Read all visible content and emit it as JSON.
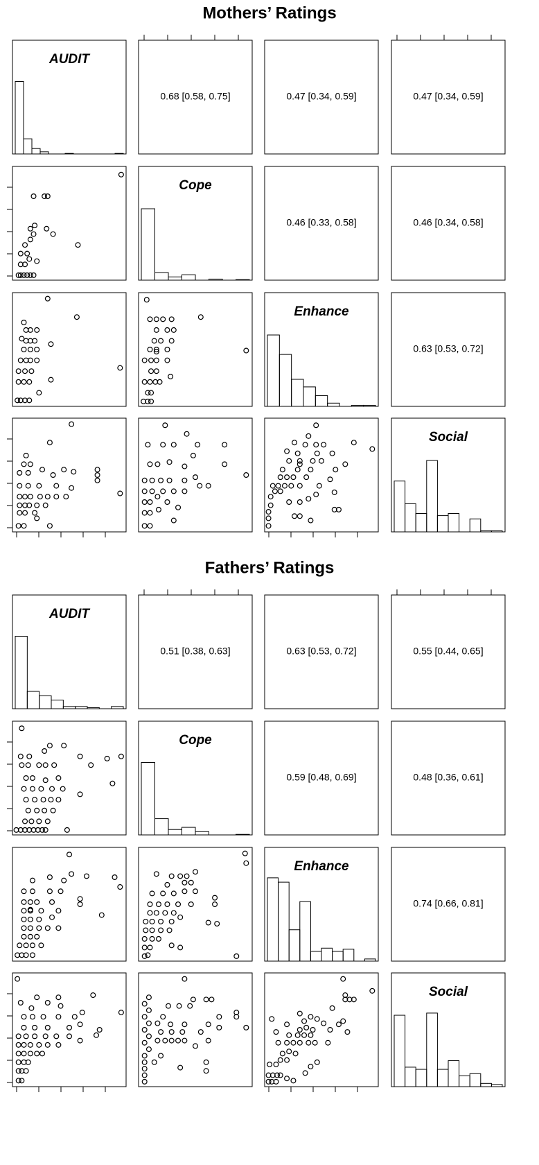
{
  "chart_data": [
    {
      "type": "scatter_matrix",
      "title": "Mothers’ Ratings",
      "xlim": [
        0,
        100
      ],
      "ylim": [
        0,
        100
      ],
      "variables": [
        "AUDIT",
        "Cope",
        "Enhance",
        "Social"
      ],
      "correlations": [
        "0.68 [0.58, 0.75]",
        "0.47 [0.34, 0.59]",
        "0.47 [0.34, 0.59]",
        "0.46 [0.33, 0.58]",
        "0.46 [0.34, 0.58]",
        "0.63 [0.53, 0.72]"
      ],
      "histograms": [
        {
          "counts": [
            67,
            14,
            5,
            2,
            0,
            0,
            0.5,
            0,
            0,
            0,
            0,
            0,
            0.5
          ]
        },
        {
          "counts": [
            66,
            7,
            3,
            5,
            0,
            1,
            0,
            0.5
          ]
        },
        {
          "counts": [
            66,
            48,
            25,
            18,
            10,
            3,
            0,
            1,
            1
          ]
        },
        {
          "counts": [
            47,
            26,
            17,
            66,
            15,
            17,
            0,
            12,
            1,
            1
          ]
        }
      ],
      "scatter": [
        {
          "x": [
            3,
            5,
            8,
            11,
            14,
            17,
            5,
            9,
            5,
            11,
            9,
            14,
            17,
            14,
            18,
            29,
            35,
            17,
            27,
            30,
            58,
            98,
            20,
            13
          ],
          "y": [
            2,
            2,
            2,
            2,
            2,
            2,
            12,
            12,
            22,
            22,
            30,
            35,
            40,
            45,
            48,
            45,
            40,
            75,
            75,
            75,
            30,
            95,
            15,
            17
          ]
        },
        {
          "x": [
            2,
            5,
            9,
            13,
            3,
            8,
            13,
            3,
            9,
            15,
            5,
            10,
            14,
            20,
            8,
            14,
            20,
            10,
            14,
            18,
            33,
            10,
            14,
            20,
            6,
            33,
            8,
            22,
            97,
            57,
            30
          ],
          "y": [
            3,
            3,
            3,
            3,
            20,
            20,
            20,
            30,
            30,
            30,
            40,
            40,
            40,
            40,
            50,
            50,
            50,
            58,
            58,
            58,
            55,
            68,
            68,
            68,
            60,
            22,
            75,
            10,
            33,
            80,
            97
          ]
        },
        {
          "x": [
            2,
            6,
            9,
            6,
            9,
            3,
            8,
            13,
            17,
            9,
            14,
            3,
            9,
            14,
            24,
            8,
            14,
            24,
            12,
            18,
            28,
            14,
            24,
            30,
            8,
            14,
            20,
            28,
            55,
            97,
            5,
            14,
            27
          ],
          "y": [
            2,
            2,
            2,
            10,
            10,
            20,
            20,
            20,
            20,
            30,
            30,
            40,
            40,
            40,
            40,
            50,
            50,
            50,
            58,
            58,
            58,
            68,
            68,
            68,
            78,
            78,
            78,
            78,
            80,
            49,
            96,
            48,
            25
          ]
        },
        {
          "x": [
            3,
            8,
            32,
            4,
            9,
            18,
            4,
            9,
            13,
            20,
            28,
            4,
            9,
            14,
            23,
            30,
            38,
            47,
            4,
            12,
            22,
            38,
            52,
            76,
            76,
            76,
            54,
            4,
            12,
            35,
            45,
            97,
            8,
            14,
            10,
            32,
            52,
            25,
            20
          ],
          "y": [
            3,
            3,
            3,
            15,
            15,
            15,
            22,
            22,
            22,
            22,
            22,
            30,
            30,
            30,
            30,
            30,
            30,
            30,
            40,
            40,
            40,
            40,
            38,
            45,
            50,
            55,
            53,
            52,
            52,
            50,
            55,
            33,
            60,
            60,
            68,
            80,
            97,
            55,
            10
          ]
        },
        {
          "x": [
            3,
            8,
            30,
            3,
            8,
            16,
            3,
            8,
            15,
            24,
            3,
            10,
            20,
            30,
            40,
            54,
            3,
            10,
            18,
            26,
            40,
            50,
            8,
            15,
            26,
            40,
            48,
            6,
            20,
            30,
            52,
            77,
            42,
            22,
            77,
            97,
            62,
            34
          ],
          "y": [
            3,
            3,
            8,
            15,
            15,
            18,
            25,
            25,
            30,
            25,
            35,
            35,
            35,
            35,
            35,
            40,
            45,
            45,
            45,
            45,
            45,
            48,
            60,
            60,
            62,
            58,
            68,
            78,
            78,
            78,
            78,
            78,
            88,
            96,
            60,
            50,
            40,
            20
          ]
        },
        {
          "x": [
            1,
            1,
            1,
            3,
            3,
            7,
            12,
            5,
            10,
            16,
            22,
            30,
            12,
            18,
            24,
            36,
            14,
            28,
            40,
            20,
            30,
            38,
            45,
            48,
            20,
            30,
            42,
            50,
            46,
            28,
            18,
            35,
            45,
            52,
            25,
            38,
            30,
            60,
            63,
            72,
            80,
            97,
            45,
            62,
            62,
            66,
            25,
            30,
            40,
            58
          ],
          "y": [
            3,
            10,
            16,
            22,
            30,
            35,
            35,
            40,
            40,
            40,
            40,
            40,
            48,
            48,
            48,
            48,
            55,
            55,
            55,
            25,
            25,
            28,
            32,
            40,
            63,
            63,
            63,
            63,
            70,
            70,
            72,
            78,
            78,
            78,
            80,
            86,
            60,
            70,
            55,
            60,
            80,
            74,
            96,
            34,
            18,
            18,
            12,
            12,
            8,
            46
          ]
        }
      ]
    },
    {
      "type": "scatter_matrix",
      "title": "Fathers’ Ratings",
      "xlim": [
        0,
        100
      ],
      "ylim": [
        0,
        100
      ],
      "variables": [
        "AUDIT",
        "Cope",
        "Enhance",
        "Social"
      ],
      "correlations": [
        "0.51 [0.38, 0.63]",
        "0.63 [0.53, 0.72]",
        "0.55 [0.44, 0.65]",
        "0.59 [0.48, 0.69]",
        "0.48 [0.36, 0.61]",
        "0.74 [0.66, 0.81]"
      ],
      "histograms": [
        {
          "counts": [
            67,
            16,
            12,
            8,
            2,
            2,
            1,
            0,
            2
          ]
        },
        {
          "counts": [
            67,
            15,
            5,
            7,
            3,
            0,
            0,
            0.5
          ]
        },
        {
          "counts": [
            77,
            73,
            29,
            55,
            9,
            12,
            9,
            11,
            0,
            2
          ]
        },
        {
          "counts": [
            66,
            18,
            16,
            68,
            16,
            24,
            10,
            12,
            3,
            2
          ]
        }
      ],
      "scatter": [
        {
          "x": [
            1,
            5,
            9,
            13,
            17,
            21,
            25,
            28,
            48,
            9,
            15,
            22,
            30,
            12,
            20,
            27,
            35,
            10,
            18,
            26,
            33,
            40,
            8,
            16,
            24,
            34,
            44,
            60,
            10,
            16,
            28,
            40,
            6,
            12,
            22,
            28,
            36,
            70,
            5,
            13,
            27,
            45,
            60,
            85,
            98,
            90,
            6,
            32
          ],
          "y": [
            2,
            2,
            2,
            2,
            2,
            2,
            2,
            2,
            2,
            10,
            10,
            10,
            10,
            20,
            20,
            20,
            20,
            30,
            30,
            30,
            30,
            30,
            40,
            40,
            40,
            40,
            40,
            35,
            50,
            50,
            48,
            50,
            62,
            62,
            62,
            62,
            62,
            62,
            70,
            70,
            75,
            80,
            70,
            68,
            70,
            45,
            96,
            80
          ]
        },
        {
          "x": [
            2,
            6,
            10,
            16,
            4,
            10,
            16,
            24,
            8,
            14,
            20,
            8,
            14,
            22,
            30,
            40,
            8,
            14,
            22,
            34,
            8,
            14,
            24,
            40,
            8,
            14,
            20,
            34,
            60,
            60,
            8,
            16,
            32,
            42,
            16,
            32,
            45,
            52,
            66,
            92,
            97,
            80,
            50,
            14
          ],
          "y": [
            3,
            3,
            3,
            3,
            12,
            12,
            12,
            12,
            20,
            20,
            20,
            28,
            28,
            28,
            28,
            28,
            36,
            36,
            36,
            38,
            44,
            44,
            44,
            44,
            52,
            52,
            52,
            52,
            50,
            55,
            62,
            62,
            62,
            62,
            72,
            75,
            72,
            78,
            76,
            75,
            66,
            40,
            96,
            45
          ]
        },
        {
          "x": [
            3,
            6,
            3,
            8,
            3,
            10,
            16,
            4,
            10,
            18,
            26,
            4,
            10,
            18,
            28,
            36,
            8,
            14,
            22,
            30,
            8,
            16,
            24,
            34,
            46,
            10,
            20,
            30,
            40,
            50,
            68,
            68,
            62,
            24,
            40,
            46,
            28,
            36,
            42,
            50,
            14,
            88,
            97,
            96,
            70,
            28,
            36
          ],
          "y": [
            2,
            3,
            10,
            10,
            18,
            18,
            18,
            26,
            26,
            26,
            26,
            34,
            34,
            34,
            34,
            38,
            42,
            42,
            42,
            42,
            50,
            50,
            50,
            50,
            50,
            60,
            60,
            60,
            62,
            62,
            56,
            50,
            33,
            68,
            70,
            70,
            76,
            76,
            76,
            80,
            78,
            2,
            88,
            97,
            32,
            12,
            10
          ]
        },
        {
          "x": [
            2,
            3,
            6,
            3,
            6,
            10,
            3,
            8,
            12,
            3,
            8,
            14,
            20,
            25,
            3,
            8,
            14,
            22,
            30,
            40,
            3,
            10,
            18,
            28,
            38,
            50,
            60,
            8,
            18,
            30,
            50,
            60,
            75,
            78,
            8,
            16,
            26,
            40,
            55,
            62,
            42,
            40,
            30,
            15,
            72,
            5,
            20,
            98
          ],
          "y": [
            97,
            3,
            3,
            12,
            12,
            12,
            20,
            20,
            20,
            28,
            28,
            28,
            28,
            28,
            36,
            36,
            36,
            36,
            36,
            36,
            44,
            44,
            44,
            44,
            44,
            44,
            40,
            52,
            52,
            52,
            52,
            55,
            45,
            50,
            62,
            62,
            62,
            62,
            62,
            66,
            72,
            80,
            75,
            70,
            82,
            75,
            80,
            66
          ]
        },
        {
          "x": [
            3,
            3,
            3,
            3,
            3,
            7,
            3,
            7,
            3,
            7,
            3,
            7,
            3,
            7,
            12,
            18,
            15,
            22,
            28,
            34,
            40,
            18,
            28,
            38,
            15,
            27,
            40,
            55,
            50,
            62,
            62,
            25,
            35,
            45,
            48,
            60,
            65,
            72,
            72,
            88,
            88,
            97,
            40,
            20,
            36,
            60,
            60
          ],
          "y": [
            2,
            8,
            14,
            20,
            26,
            32,
            38,
            44,
            50,
            56,
            62,
            68,
            74,
            80,
            20,
            26,
            40,
            40,
            40,
            40,
            40,
            48,
            48,
            48,
            56,
            55,
            55,
            48,
            35,
            40,
            55,
            72,
            72,
            72,
            78,
            78,
            78,
            62,
            52,
            62,
            66,
            52,
            97,
            62,
            15,
            12,
            20
          ]
        },
        {
          "x": [
            1,
            4,
            8,
            1,
            5,
            9,
            12,
            18,
            24,
            2,
            8,
            12,
            18,
            14,
            20,
            26,
            10,
            18,
            24,
            30,
            38,
            44,
            20,
            28,
            34,
            40,
            30,
            36,
            42,
            34,
            40,
            46,
            52,
            58,
            66,
            70,
            74,
            56,
            46,
            40,
            35,
            60,
            72,
            76,
            80,
            72,
            70,
            97,
            8,
            4,
            30,
            18
          ],
          "y": [
            2,
            2,
            2,
            8,
            8,
            8,
            8,
            5,
            3,
            18,
            18,
            22,
            22,
            28,
            30,
            28,
            38,
            38,
            38,
            38,
            38,
            38,
            45,
            45,
            45,
            45,
            50,
            52,
            50,
            58,
            62,
            60,
            56,
            50,
            55,
            58,
            48,
            38,
            20,
            16,
            10,
            70,
            78,
            78,
            78,
            82,
            97,
            86,
            48,
            60,
            65,
            55
          ]
        }
      ]
    }
  ]
}
